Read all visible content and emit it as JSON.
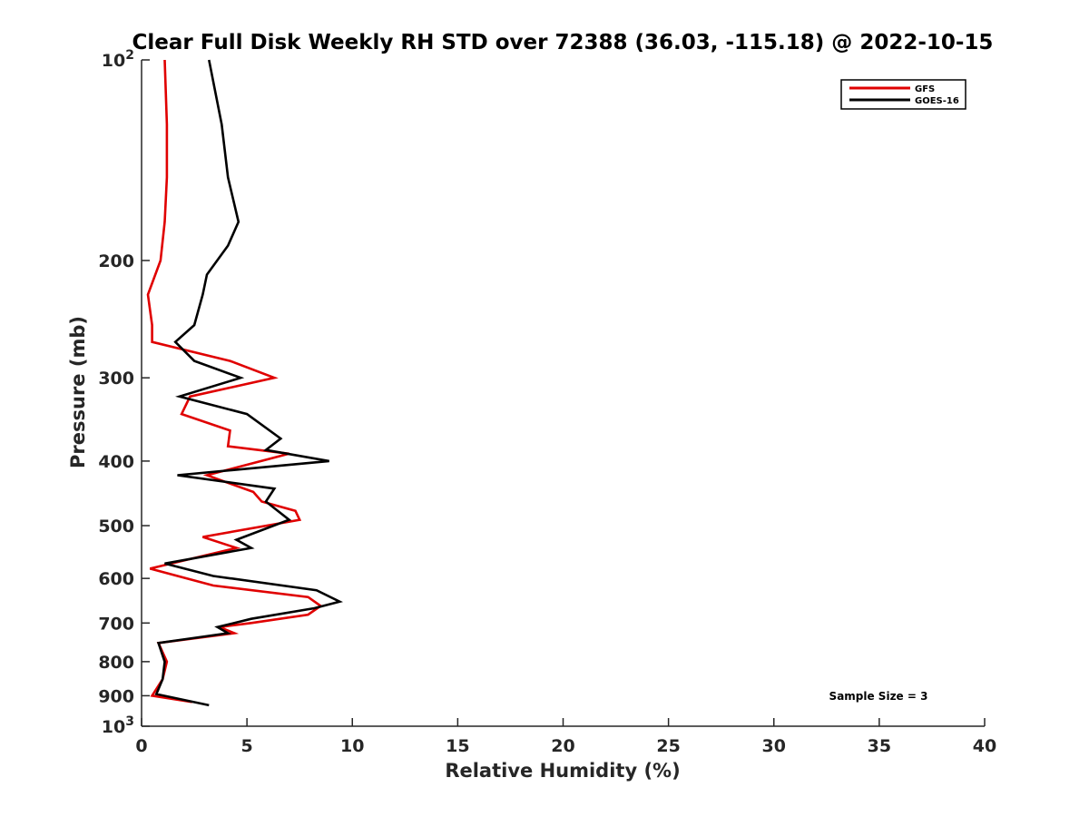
{
  "chart_data": {
    "type": "line",
    "title": "Clear Full Disk Weekly RH STD over 72388 (36.03, -115.18) @ 2022-10-15",
    "xlabel": "Relative Humidity (%)",
    "ylabel": "Pressure (mb)",
    "xlim": [
      0,
      40
    ],
    "ylim": [
      100,
      1000
    ],
    "y_scale": "log",
    "y_reversed": true,
    "x_ticks": [
      "0",
      "5",
      "10",
      "15",
      "20",
      "25",
      "30",
      "35",
      "40"
    ],
    "y_ticks": [
      {
        "value": 100,
        "base": "10",
        "exp": "2"
      },
      {
        "value": 200,
        "label": "200"
      },
      {
        "value": 300,
        "label": "300"
      },
      {
        "value": 400,
        "label": "400"
      },
      {
        "value": 500,
        "label": "500"
      },
      {
        "value": 600,
        "label": "600"
      },
      {
        "value": 700,
        "label": "700"
      },
      {
        "value": 800,
        "label": "800"
      },
      {
        "value": 900,
        "label": "900"
      },
      {
        "value": 1000,
        "base": "10",
        "exp": "3"
      }
    ],
    "legend_position": "top-right",
    "annotation": "Sample Size = 3",
    "series": [
      {
        "name": "GFS",
        "color": "#e00000",
        "x": [
          1.1,
          1.2,
          1.2,
          1.1,
          0.9,
          0.3,
          0.5,
          0.5,
          0.5,
          4.2,
          6.3,
          2.3,
          1.9,
          4.2,
          4.1,
          7.0,
          3.1,
          5.3,
          5.7,
          7.3,
          7.5,
          2.9,
          4.5,
          0.4,
          3.4,
          7.9,
          8.5,
          7.9,
          5.2,
          3.7,
          4.4,
          0.8,
          1.2,
          1.0,
          0.5,
          2.4
        ],
        "y": [
          100,
          125,
          150,
          175,
          200,
          225,
          250,
          265,
          265,
          283,
          300,
          320,
          340,
          360,
          380,
          390,
          420,
          445,
          460,
          475,
          490,
          520,
          540,
          580,
          615,
          640,
          660,
          680,
          700,
          710,
          725,
          750,
          800,
          850,
          900,
          920
        ]
      },
      {
        "name": "GOES-16",
        "color": "#000000",
        "x": [
          3.2,
          3.8,
          4.1,
          4.6,
          4.1,
          3.1,
          2.9,
          2.5,
          1.6,
          2.5,
          4.7,
          1.8,
          5.0,
          6.6,
          5.9,
          8.9,
          1.7,
          6.3,
          5.9,
          7.0,
          4.5,
          5.2,
          1.1,
          3.4,
          8.3,
          9.4,
          8.2,
          5.2,
          3.6,
          4.1,
          0.8,
          1.1,
          1.0,
          0.7,
          3.2
        ],
        "y": [
          100,
          125,
          150,
          175,
          190,
          210,
          225,
          250,
          265,
          283,
          300,
          320,
          340,
          370,
          385,
          400,
          420,
          440,
          460,
          490,
          525,
          540,
          570,
          595,
          625,
          650,
          665,
          690,
          710,
          725,
          750,
          800,
          850,
          895,
          930
        ]
      }
    ]
  }
}
